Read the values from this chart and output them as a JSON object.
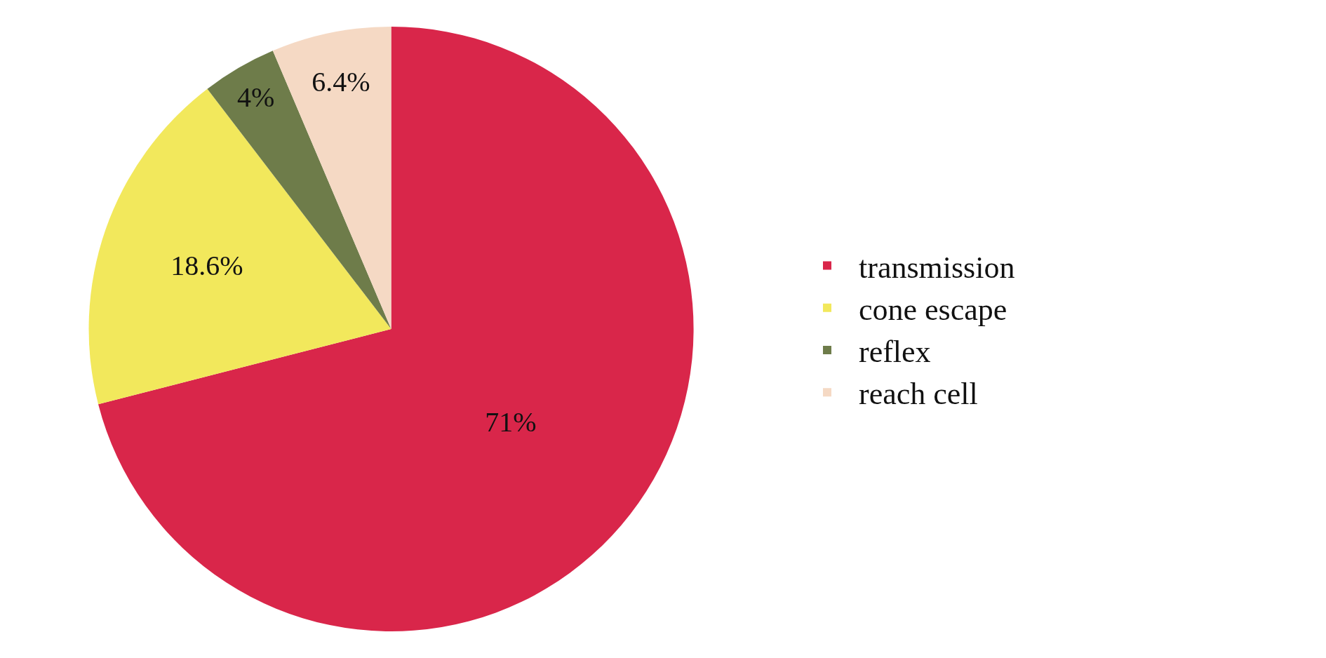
{
  "chart_data": {
    "type": "pie",
    "categories": [
      "transmission",
      "cone escape",
      "reflex",
      "reach cell"
    ],
    "values": [
      71,
      18.6,
      4,
      6.4
    ],
    "colors": [
      "#d9264a",
      "#f2e85c",
      "#6e7c4a",
      "#f5d9c4"
    ],
    "value_labels": [
      "71%",
      "18.6%",
      "4%",
      "6.4%"
    ],
    "legend": "right"
  }
}
